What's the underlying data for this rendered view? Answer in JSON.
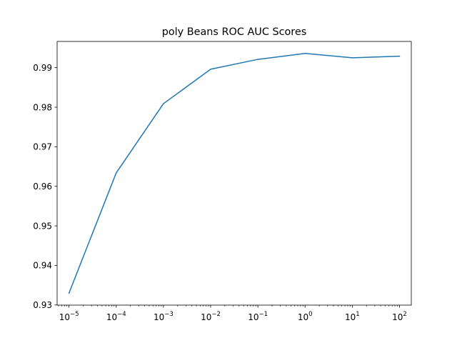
{
  "chart_data": {
    "type": "line",
    "title": "poly Beans ROC AUC Scores",
    "xlabel": "",
    "ylabel": "",
    "x_scale": "log",
    "x": [
      1e-05,
      0.0001,
      0.001,
      0.01,
      0.1,
      1,
      10,
      100
    ],
    "x_tick_labels": [
      {
        "base": "10",
        "exp": "−5"
      },
      {
        "base": "10",
        "exp": "−4"
      },
      {
        "base": "10",
        "exp": "−3"
      },
      {
        "base": "10",
        "exp": "−2"
      },
      {
        "base": "10",
        "exp": "−1"
      },
      {
        "base": "10",
        "exp": "0"
      },
      {
        "base": "10",
        "exp": "1"
      },
      {
        "base": "10",
        "exp": "2"
      }
    ],
    "series": [
      {
        "values": [
          0.933,
          0.9634,
          0.9809,
          0.9896,
          0.9921,
          0.9936,
          0.9925,
          0.9929
        ],
        "color": "#1f77b4"
      }
    ],
    "y_ticks": [
      0.93,
      0.94,
      0.95,
      0.96,
      0.97,
      0.98,
      0.99
    ],
    "y_tick_labels": [
      "0.93",
      "0.94",
      "0.95",
      "0.96",
      "0.97",
      "0.98",
      "0.99"
    ],
    "xlim": [
      5.6e-06,
      178
    ],
    "ylim": [
      0.92996,
      0.99663
    ],
    "grid": false,
    "legend": "none"
  }
}
